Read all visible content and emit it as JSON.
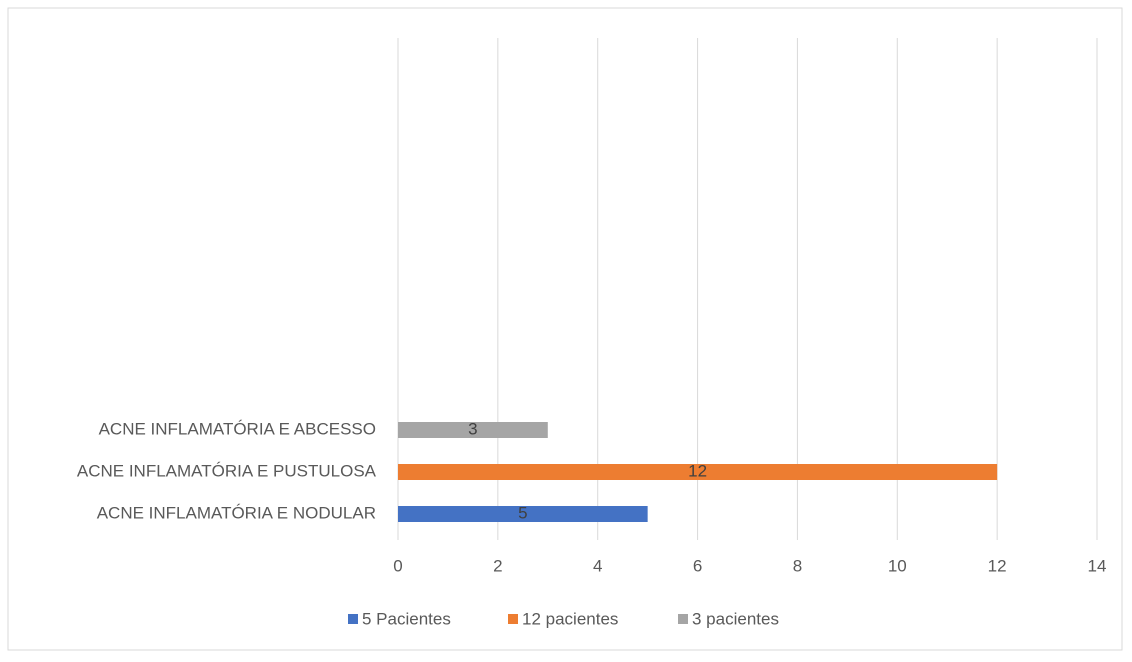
{
  "chart_data": {
    "type": "bar",
    "orientation": "horizontal",
    "categories": [
      "ACNE INFLAMATÓRIA E NODULAR",
      "ACNE INFLAMATÓRIA E PUSTULOSA",
      "ACNE INFLAMATÓRIA E ABCESSO"
    ],
    "series": [
      {
        "name": "5 Pacientes",
        "color": "#4472c4",
        "values": [
          5,
          null,
          null
        ]
      },
      {
        "name": "12 pacientes",
        "color": "#ed7d31",
        "values": [
          null,
          12,
          null
        ]
      },
      {
        "name": "3 pacientes",
        "color": "#a5a5a5",
        "values": [
          null,
          null,
          3
        ]
      }
    ],
    "xlim": [
      0,
      14
    ],
    "xticks": [
      0,
      2,
      4,
      6,
      8,
      10,
      12,
      14
    ],
    "grid": true,
    "legend": "bottom"
  }
}
